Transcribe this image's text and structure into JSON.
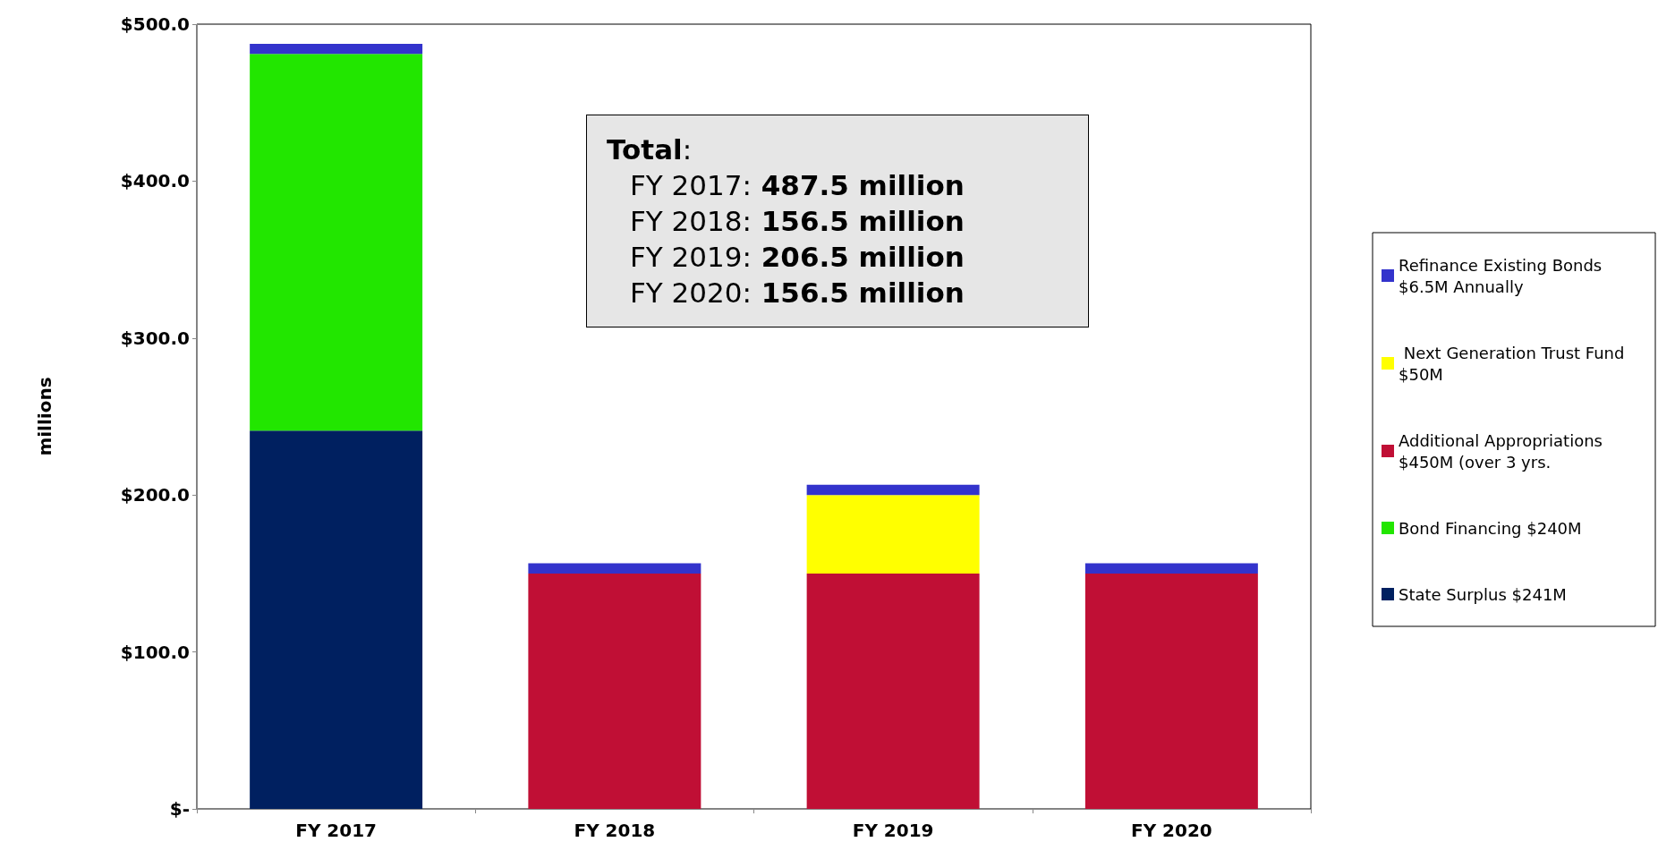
{
  "chart_data": {
    "type": "bar",
    "stacked": true,
    "ylabel": "millions",
    "categories": [
      "FY 2017",
      "FY 2018",
      "FY 2019",
      "FY 2020"
    ],
    "series": [
      {
        "name": "State Surplus $241M",
        "color": "#002060",
        "values": [
          241,
          0,
          0,
          0
        ]
      },
      {
        "name": "Bond Financing $240M",
        "color": "#22e600",
        "values": [
          240,
          0,
          0,
          0
        ]
      },
      {
        "name": "Additional Appropriations $450M (over 3 yrs.",
        "color": "#c00f35",
        "values": [
          0,
          150,
          150,
          150
        ]
      },
      {
        "name": " Next Generation Trust Fund $50M",
        "color": "#ffff00",
        "values": [
          0,
          0,
          50,
          0
        ]
      },
      {
        "name": "Refinance Existing Bonds $6.5M Annually",
        "color": "#3333cc",
        "values": [
          6.5,
          6.5,
          6.5,
          6.5
        ]
      }
    ],
    "ylim": [
      0,
      500
    ],
    "yticks": [
      {
        "value": 0,
        "label": "$-"
      },
      {
        "value": 100,
        "label": "$100.0"
      },
      {
        "value": 200,
        "label": "$200.0"
      },
      {
        "value": 300,
        "label": "$300.0"
      },
      {
        "value": 400,
        "label": "$400.0"
      },
      {
        "value": 500,
        "label": "$500.0"
      }
    ],
    "annotations": [
      "Total:",
      "FY 2017: 487.5 million",
      "FY 2018: 156.5 million",
      "FY 2019: 206.5 million",
      "FY 2020: 156.5 million"
    ],
    "grid": false,
    "legend": "right"
  }
}
